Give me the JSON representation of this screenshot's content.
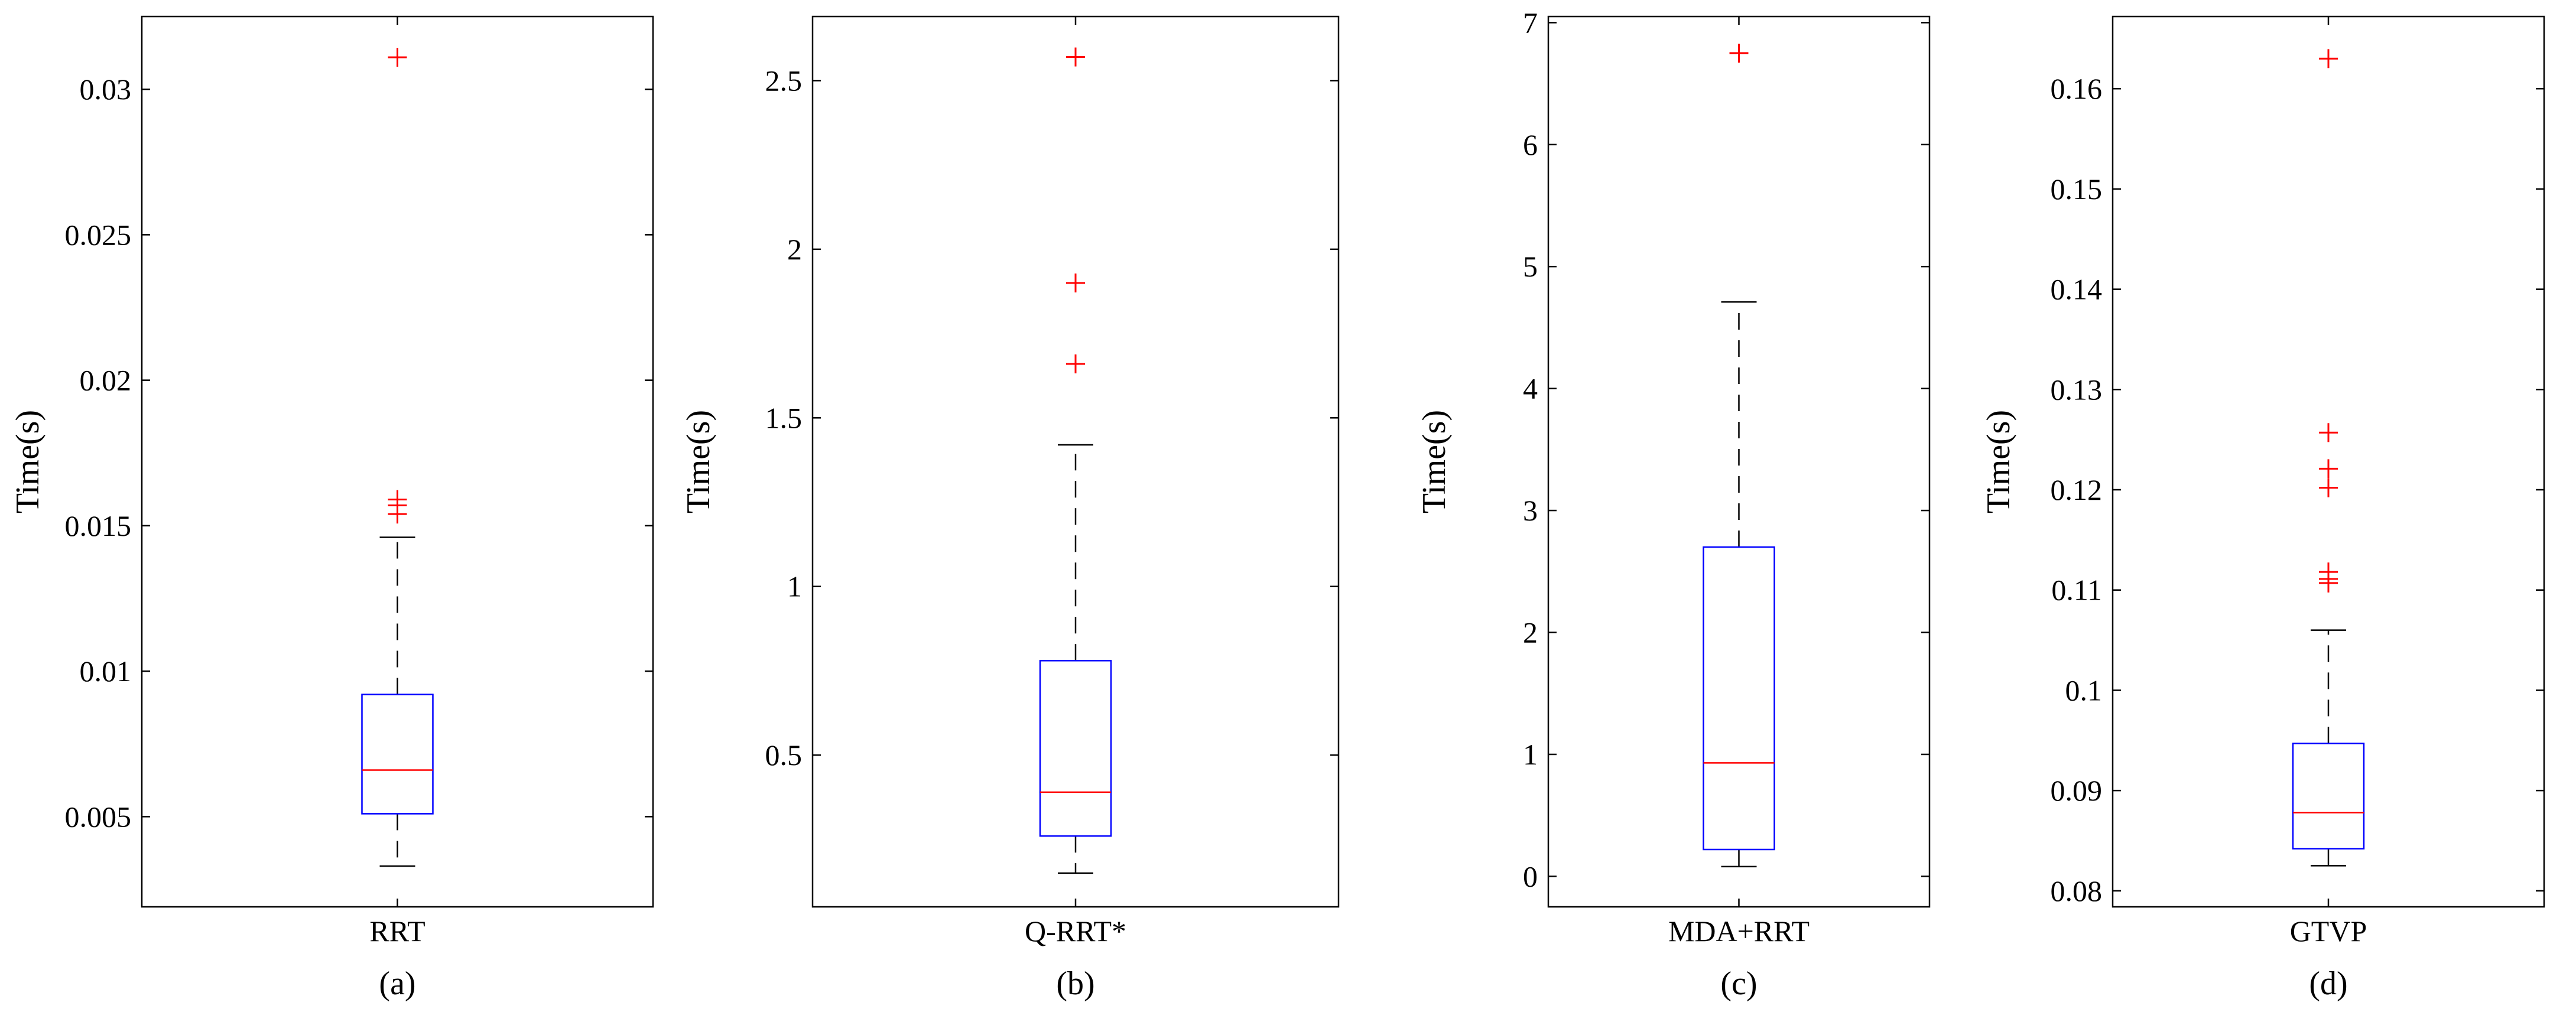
{
  "colors": {
    "box": "#0000ff",
    "median": "#ff0000",
    "outlier": "#ff0000",
    "whisker": "#000000",
    "axes": "#000000",
    "background": "#ffffff"
  },
  "chart_data": [
    {
      "type": "box",
      "panel": "(a)",
      "category": "RRT",
      "ylabel": "Time(s)",
      "ylim": [
        0.0019,
        0.0325
      ],
      "yticks": [
        0.005,
        0.01,
        0.015,
        0.02,
        0.025,
        0.03
      ],
      "ytick_labels": [
        "0.005",
        "0.01",
        "0.015",
        "0.02",
        "0.025",
        "0.03"
      ],
      "whisker_low": 0.0033,
      "q1": 0.0051,
      "median": 0.0066,
      "q3": 0.0092,
      "whisker_high": 0.0146,
      "outliers": [
        0.0154,
        0.0157,
        0.0159,
        0.0311
      ]
    },
    {
      "type": "box",
      "panel": "(b)",
      "category": "Q-RRT*",
      "ylabel": "Time(s)",
      "ylim": [
        0.05,
        2.69
      ],
      "yticks": [
        0.5,
        1,
        1.5,
        2,
        2.5
      ],
      "ytick_labels": [
        "0.5",
        "1",
        "1.5",
        "2",
        "2.5"
      ],
      "whisker_low": 0.15,
      "q1": 0.26,
      "median": 0.39,
      "q3": 0.78,
      "whisker_high": 1.42,
      "outliers": [
        1.66,
        1.9,
        2.57
      ]
    },
    {
      "type": "box",
      "panel": "(c)",
      "category": "MDA+RRT",
      "ylabel": "Time(s)",
      "ylim": [
        -0.25,
        7.05
      ],
      "yticks": [
        0,
        1,
        2,
        3,
        4,
        5,
        6,
        7
      ],
      "ytick_labels": [
        "0",
        "1",
        "2",
        "3",
        "4",
        "5",
        "6",
        "7"
      ],
      "whisker_low": 0.08,
      "q1": 0.22,
      "median": 0.93,
      "q3": 2.7,
      "whisker_high": 4.71,
      "outliers": [
        6.75
      ]
    },
    {
      "type": "box",
      "panel": "(d)",
      "category": "GTVP",
      "ylabel": "Time(s)",
      "ylim": [
        0.0784,
        0.1672
      ],
      "yticks": [
        0.08,
        0.09,
        0.1,
        0.11,
        0.12,
        0.13,
        0.14,
        0.15,
        0.16
      ],
      "ytick_labels": [
        "0.08",
        "0.09",
        "0.1",
        "0.11",
        "0.12",
        "0.13",
        "0.14",
        "0.15",
        "0.16"
      ],
      "whisker_low": 0.0825,
      "q1": 0.0842,
      "median": 0.0878,
      "q3": 0.0947,
      "whisker_high": 0.106,
      "outliers": [
        0.1107,
        0.1111,
        0.1118,
        0.1202,
        0.1221,
        0.1257,
        0.163
      ]
    }
  ]
}
